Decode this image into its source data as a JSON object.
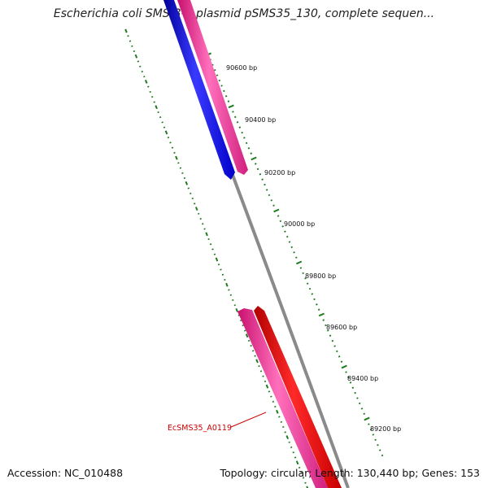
{
  "header": {
    "title": "Escherichia coli SMS-3-5 plasmid pSMS35_130, complete sequen..."
  },
  "footer": {
    "accession": "Accession: NC_010488",
    "topology": "Topology: circular; Length: 130,440 bp; Genes: 153"
  },
  "ruler": {
    "labels": [
      "90600 bp",
      "90400 bp",
      "90200 bp",
      "90000 bp",
      "89800 bp",
      "89600 bp",
      "89400 bp",
      "89200 bp"
    ]
  },
  "features": {
    "gene_label": "EcSMS35_A0119"
  },
  "colors": {
    "tick_green": "#1f7a1f",
    "backbone_gray": "#8a8a8a",
    "gene_blue": "#0000ee",
    "gene_pink": "#f0409a",
    "gene_red": "#ee0000",
    "label_red": "#cc0000"
  }
}
